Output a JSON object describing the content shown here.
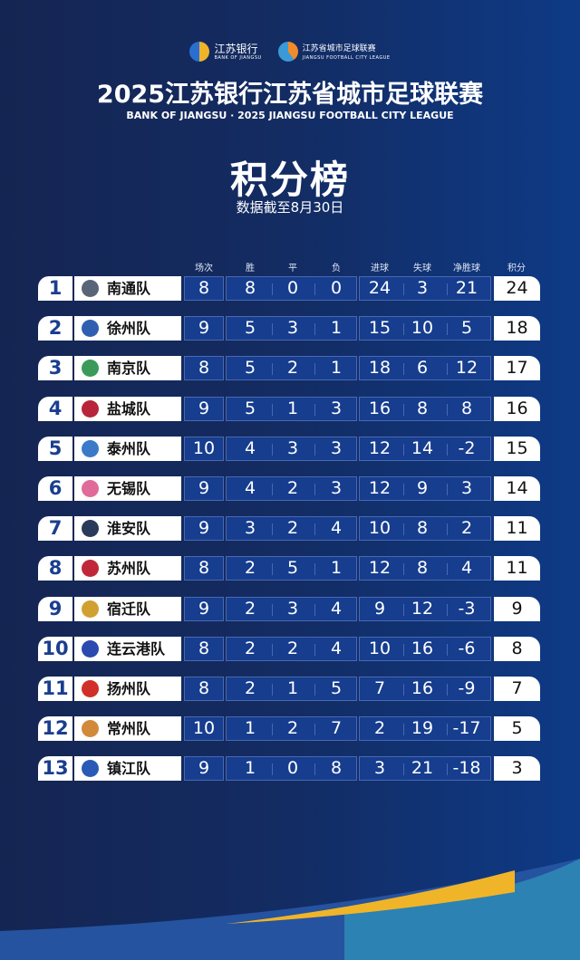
{
  "logos": {
    "bank_cn": "江苏银行",
    "bank_en": "BANK OF JIANGSU",
    "league_cn": "江苏省城市足球联赛",
    "league_en": "JIANGSU FOOTBALL CITY LEAGUE"
  },
  "title": "2025江苏银行江苏省城市足球联赛",
  "subtitle": "BANK OF JIANGSU · 2025 JIANGSU FOOTBALL CITY LEAGUE",
  "heading": "积分榜",
  "date_note": "数据截至8月30日",
  "columns": [
    "场次",
    "胜",
    "平",
    "负",
    "进球",
    "失球",
    "净胜球",
    "积分"
  ],
  "colors": {
    "rank": "#1a3e8f",
    "accent_yellow": "#f0b429"
  },
  "teams": [
    {
      "rank": "1",
      "name": "南通队",
      "played": "8",
      "w": "8",
      "d": "0",
      "l": "0",
      "gf": "24",
      "ga": "3",
      "gd": "21",
      "pts": "24",
      "badge": "#5a6478"
    },
    {
      "rank": "2",
      "name": "徐州队",
      "played": "9",
      "w": "5",
      "d": "3",
      "l": "1",
      "gf": "15",
      "ga": "10",
      "gd": "5",
      "pts": "18",
      "badge": "#2f5fb0"
    },
    {
      "rank": "3",
      "name": "南京队",
      "played": "8",
      "w": "5",
      "d": "2",
      "l": "1",
      "gf": "18",
      "ga": "6",
      "gd": "12",
      "pts": "17",
      "badge": "#3a9a5a"
    },
    {
      "rank": "4",
      "name": "盐城队",
      "played": "9",
      "w": "5",
      "d": "1",
      "l": "3",
      "gf": "16",
      "ga": "8",
      "gd": "8",
      "pts": "16",
      "badge": "#b8243a"
    },
    {
      "rank": "5",
      "name": "泰州队",
      "played": "10",
      "w": "4",
      "d": "3",
      "l": "3",
      "gf": "12",
      "ga": "14",
      "gd": "-2",
      "pts": "15",
      "badge": "#3a7ac8"
    },
    {
      "rank": "6",
      "name": "无锡队",
      "played": "9",
      "w": "4",
      "d": "2",
      "l": "3",
      "gf": "12",
      "ga": "9",
      "gd": "3",
      "pts": "14",
      "badge": "#e06a9a"
    },
    {
      "rank": "7",
      "name": "淮安队",
      "played": "9",
      "w": "3",
      "d": "2",
      "l": "4",
      "gf": "10",
      "ga": "8",
      "gd": "2",
      "pts": "11",
      "badge": "#2a3a5a"
    },
    {
      "rank": "8",
      "name": "苏州队",
      "played": "8",
      "w": "2",
      "d": "5",
      "l": "1",
      "gf": "12",
      "ga": "8",
      "gd": "4",
      "pts": "11",
      "badge": "#c0283a"
    },
    {
      "rank": "9",
      "name": "宿迁队",
      "played": "9",
      "w": "2",
      "d": "3",
      "l": "4",
      "gf": "9",
      "ga": "12",
      "gd": "-3",
      "pts": "9",
      "badge": "#d0a030"
    },
    {
      "rank": "10",
      "name": "连云港队",
      "played": "8",
      "w": "2",
      "d": "2",
      "l": "4",
      "gf": "10",
      "ga": "16",
      "gd": "-6",
      "pts": "8",
      "badge": "#2a4ab0"
    },
    {
      "rank": "11",
      "name": "扬州队",
      "played": "8",
      "w": "2",
      "d": "1",
      "l": "5",
      "gf": "7",
      "ga": "16",
      "gd": "-9",
      "pts": "7",
      "badge": "#d03028"
    },
    {
      "rank": "12",
      "name": "常州队",
      "played": "10",
      "w": "1",
      "d": "2",
      "l": "7",
      "gf": "2",
      "ga": "19",
      "gd": "-17",
      "pts": "5",
      "badge": "#d08a3a"
    },
    {
      "rank": "13",
      "name": "镇江队",
      "played": "9",
      "w": "1",
      "d": "0",
      "l": "8",
      "gf": "3",
      "ga": "21",
      "gd": "-18",
      "pts": "3",
      "badge": "#2a5ab8"
    }
  ]
}
